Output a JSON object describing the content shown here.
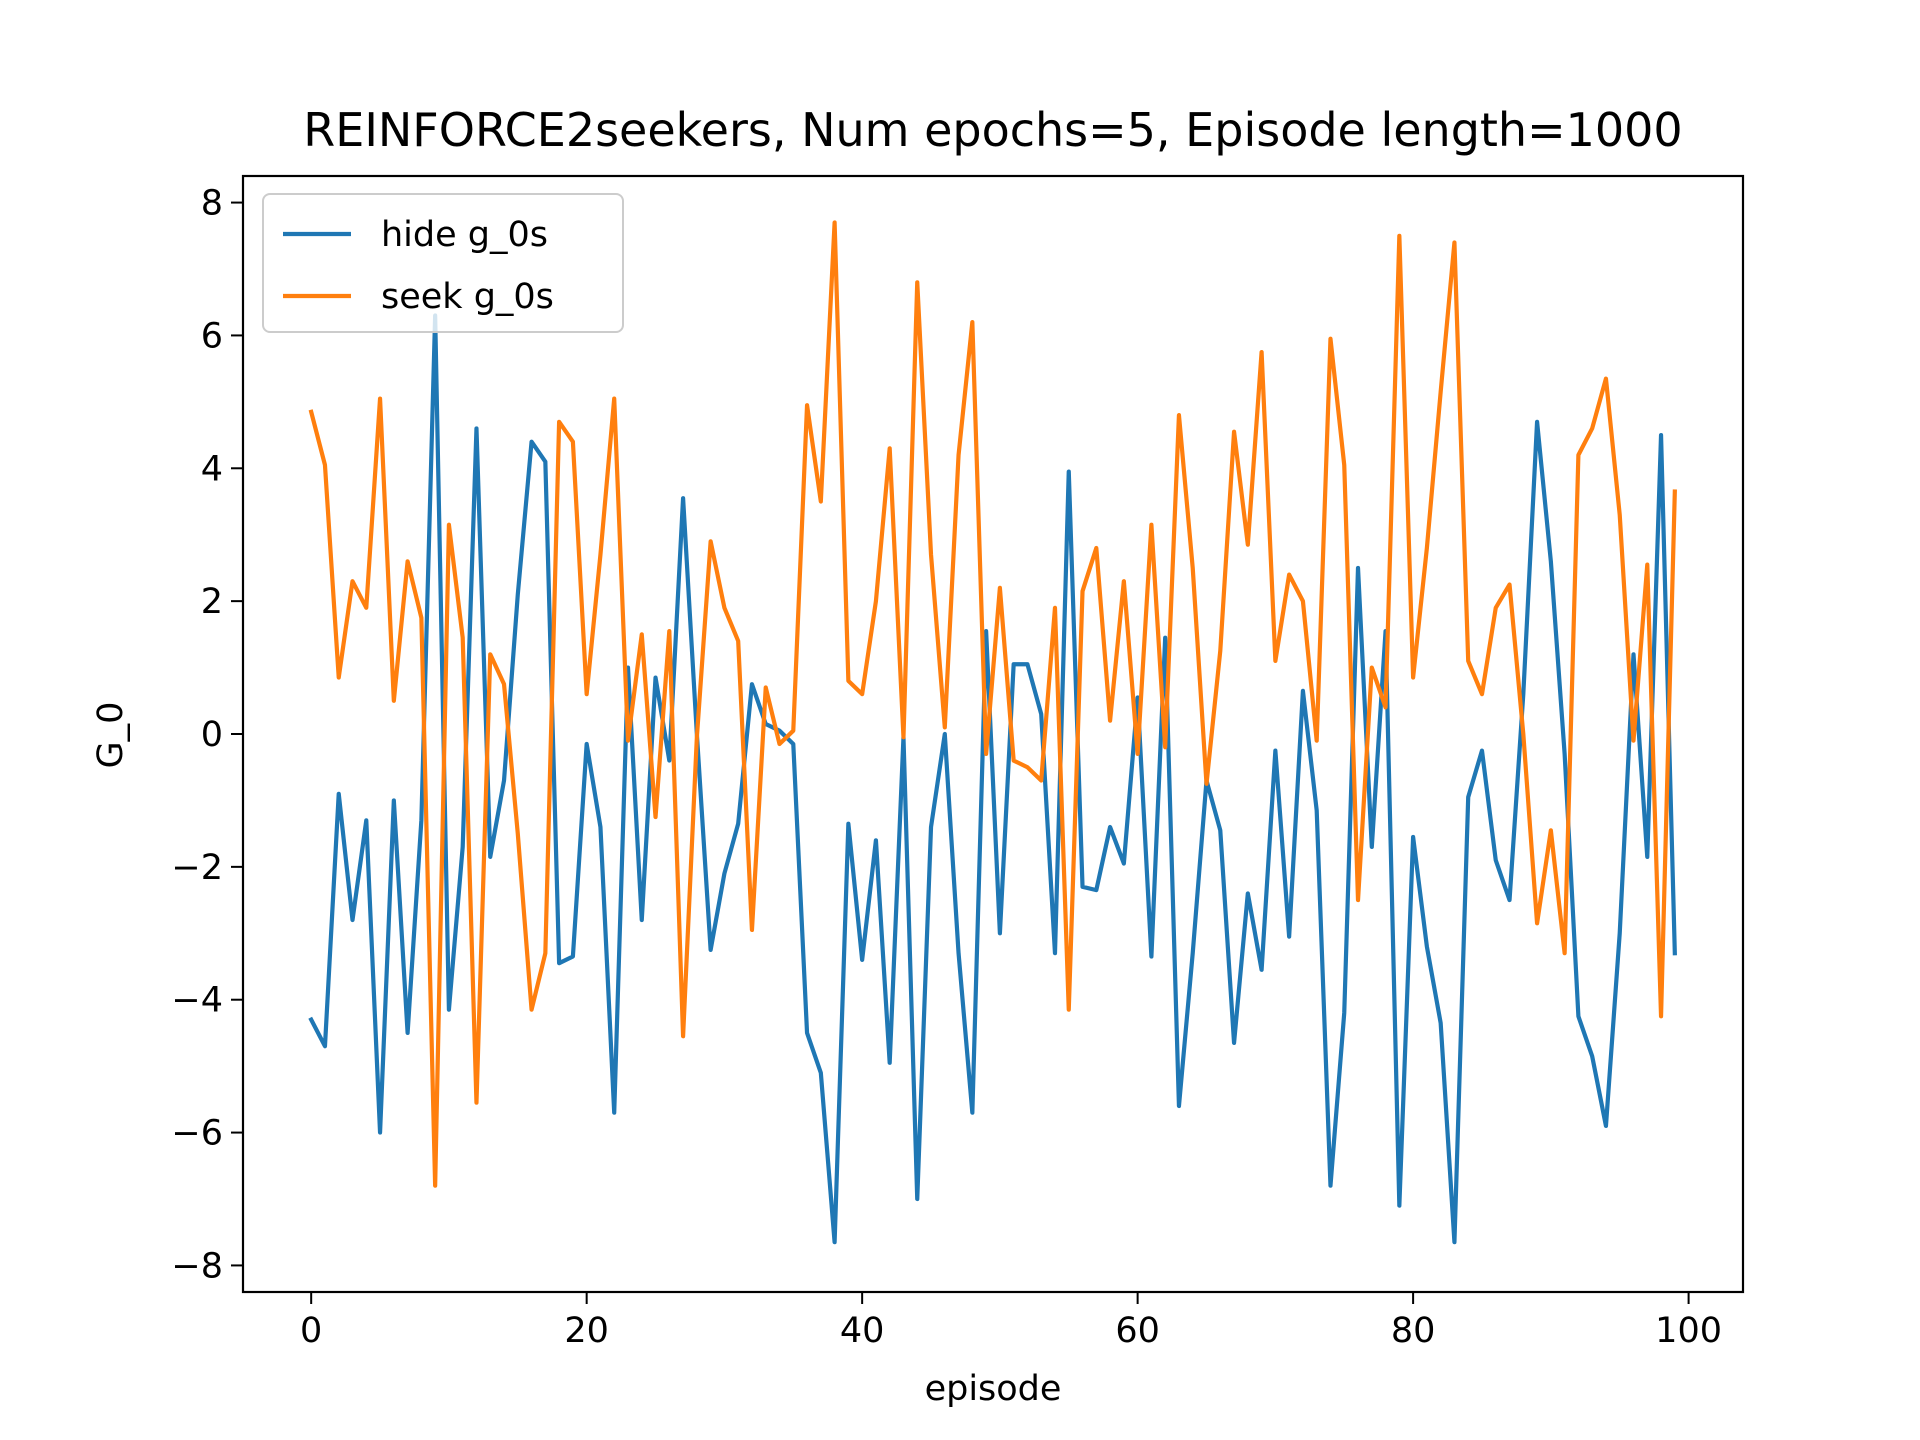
{
  "chart_data": {
    "type": "line",
    "title": "REINFORCE2seekers, Num epochs=5, Episode length=1000",
    "xlabel": "episode",
    "ylabel": "G_0",
    "xlim": [
      -4.95,
      103.95
    ],
    "ylim": [
      -8.4,
      8.4
    ],
    "xticks": [
      0,
      20,
      40,
      60,
      80,
      100
    ],
    "yticks": [
      -8,
      -6,
      -4,
      -2,
      0,
      2,
      4,
      6,
      8
    ],
    "ytick_labels": [
      "−8",
      "−6",
      "−4",
      "−2",
      "0",
      "2",
      "4",
      "6",
      "8"
    ],
    "grid": false,
    "legend_position": "upper left",
    "series": [
      {
        "name": "hide g_0s",
        "color": "#1f77b4",
        "values": [
          -4.3,
          -4.7,
          -0.9,
          -2.8,
          -1.3,
          -6.0,
          -1.0,
          -4.5,
          -1.3,
          6.3,
          -4.15,
          -1.7,
          4.6,
          -1.85,
          -0.7,
          2.1,
          4.4,
          4.1,
          -3.45,
          -3.35,
          -0.15,
          -1.4,
          -5.7,
          1.0,
          -2.8,
          0.85,
          -0.4,
          3.55,
          0.0,
          -3.25,
          -2.1,
          -1.35,
          0.75,
          0.15,
          0.05,
          -0.15,
          -4.5,
          -5.1,
          -7.65,
          -1.35,
          -3.4,
          -1.6,
          -4.95,
          -0.05,
          -7.0,
          -1.4,
          -0.0,
          -3.3,
          -5.7,
          1.55,
          -3.0,
          1.05,
          1.05,
          0.3,
          -3.3,
          3.95,
          -2.3,
          -2.35,
          -1.4,
          -1.95,
          0.55,
          -3.35,
          1.45,
          -5.6,
          -3.3,
          -0.7,
          -1.45,
          -4.65,
          -2.4,
          -3.55,
          -0.25,
          -3.05,
          0.65,
          -1.15,
          -6.8,
          -4.2,
          2.5,
          -1.7,
          1.55,
          -7.1,
          -1.55,
          -3.2,
          -4.35,
          -7.65,
          -0.95,
          -0.25,
          -1.9,
          -2.5,
          0.6,
          4.7,
          2.6,
          -0.3,
          -4.25,
          -4.85,
          -5.9,
          -3.0,
          1.2,
          -1.85,
          4.5,
          -3.3
        ]
      },
      {
        "name": "seek g_0s",
        "color": "#ff7f0e",
        "values": [
          4.85,
          4.05,
          0.85,
          2.3,
          1.9,
          5.05,
          0.5,
          2.6,
          1.75,
          -6.8,
          3.15,
          1.45,
          -5.55,
          1.2,
          0.75,
          -1.5,
          -4.15,
          -3.3,
          4.7,
          4.4,
          0.6,
          2.7,
          5.05,
          -0.1,
          1.5,
          -1.25,
          1.55,
          -4.55,
          -0.05,
          2.9,
          1.9,
          1.4,
          -2.95,
          0.7,
          -0.15,
          0.05,
          4.95,
          3.5,
          7.7,
          0.8,
          0.6,
          2.0,
          4.3,
          -0.05,
          6.8,
          2.7,
          0.1,
          4.2,
          6.2,
          -0.3,
          2.2,
          -0.4,
          -0.5,
          -0.7,
          1.9,
          -4.15,
          2.15,
          2.8,
          0.2,
          2.3,
          -0.3,
          3.15,
          -0.2,
          4.8,
          2.5,
          -0.75,
          1.25,
          4.55,
          2.85,
          5.75,
          1.1,
          2.4,
          2.0,
          -0.1,
          5.95,
          4.05,
          -2.5,
          1.0,
          0.4,
          7.5,
          0.85,
          2.8,
          5.15,
          7.4,
          1.1,
          0.6,
          1.9,
          2.25,
          0.0,
          -2.85,
          -1.45,
          -3.3,
          4.2,
          4.6,
          5.35,
          3.3,
          -0.1,
          2.55,
          -4.25,
          3.65
        ]
      }
    ]
  }
}
